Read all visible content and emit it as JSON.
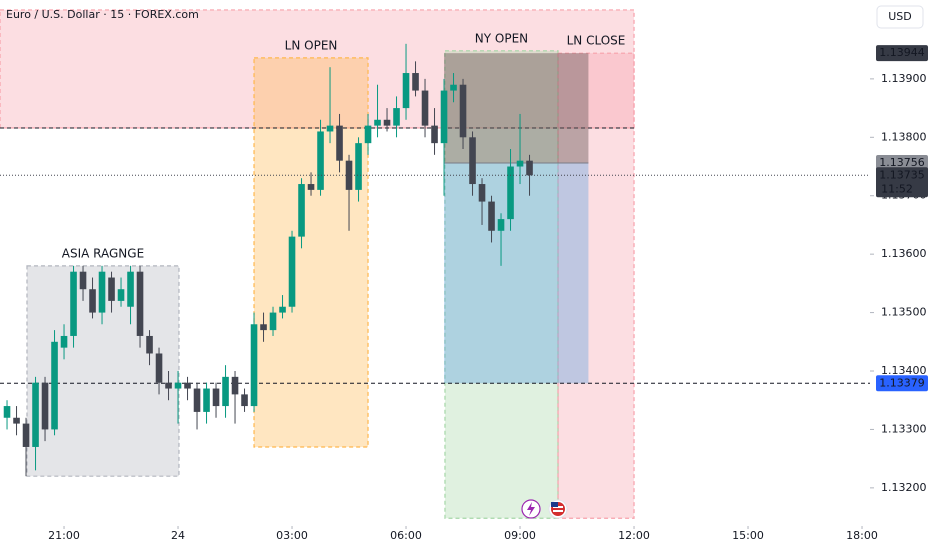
{
  "chart_data": {
    "type": "candlestick",
    "title": "Euro / U.S. Dollar · 15 · FOREX.com",
    "currency": "USD",
    "up_color": "#089981",
    "down_color": "#434651",
    "xlim": [
      -0.74,
      90.84
    ],
    "xticks": [
      {
        "value": 6,
        "label": "21:00"
      },
      {
        "value": 18,
        "label": "24"
      },
      {
        "value": 30,
        "label": "03:00"
      },
      {
        "value": 42,
        "label": "06:00"
      },
      {
        "value": 54,
        "label": "09:00"
      },
      {
        "value": 66,
        "label": "12:00"
      },
      {
        "value": 78,
        "label": "15:00"
      },
      {
        "value": 90,
        "label": "18:00"
      }
    ],
    "ylim": [
      1.13145,
      1.14035
    ],
    "yticks": [
      {
        "value": 1.132,
        "label": "1.13200"
      },
      {
        "value": 1.133,
        "label": "1.13300"
      },
      {
        "value": 1.134,
        "label": "1.13400"
      },
      {
        "value": 1.135,
        "label": "1.13500"
      },
      {
        "value": 1.136,
        "label": "1.13600"
      },
      {
        "value": 1.137,
        "label": "1.13700"
      },
      {
        "value": 1.138,
        "label": "1.13800"
      },
      {
        "value": 1.139,
        "label": "1.13900"
      }
    ],
    "open": [
      1.1332,
      1.1332,
      1.1331,
      1.1327,
      1.1338,
      1.133,
      1.1344,
      1.1346,
      1.1357,
      1.1354,
      1.135,
      1.1356,
      1.1352,
      1.1351,
      1.1357,
      1.1346,
      1.1343,
      1.1338,
      1.1337,
      1.1338,
      1.1337,
      1.1333,
      1.1337,
      1.1334,
      1.1339,
      1.1336,
      1.1334,
      1.1348,
      1.1347,
      1.135,
      1.1351,
      1.1363,
      1.1372,
      1.1371,
      1.1381,
      1.1382,
      1.1376,
      1.1371,
      1.1379,
      1.1382,
      1.1383,
      1.1382,
      1.1385,
      1.1391,
      1.1388,
      1.1382,
      1.1379,
      1.1388,
      1.1389,
      1.138,
      1.1372,
      1.1369,
      1.1364,
      1.1366,
      1.1375,
      1.1376
    ],
    "high": [
      1.1335,
      1.1334,
      1.1332,
      1.1339,
      1.1339,
      1.1347,
      1.1348,
      1.1358,
      1.1358,
      1.1356,
      1.1358,
      1.1357,
      1.1356,
      1.1358,
      1.1358,
      1.1347,
      1.1344,
      1.134,
      1.134,
      1.1339,
      1.1338,
      1.1338,
      1.1338,
      1.1341,
      1.134,
      1.1337,
      1.135,
      1.135,
      1.1351,
      1.1353,
      1.1364,
      1.1373,
      1.1374,
      1.1383,
      1.1392,
      1.1384,
      1.1377,
      1.138,
      1.1384,
      1.1389,
      1.1385,
      1.1387,
      1.1396,
      1.1393,
      1.139,
      1.1385,
      1.139,
      1.1391,
      1.139,
      1.1381,
      1.1373,
      1.137,
      1.1367,
      1.1378,
      1.1384,
      1.1377
    ],
    "low": [
      1.133,
      1.1329,
      1.1322,
      1.1323,
      1.1328,
      1.1329,
      1.1342,
      1.1344,
      1.1352,
      1.1349,
      1.1348,
      1.135,
      1.1351,
      1.1348,
      1.1344,
      1.1341,
      1.1336,
      1.1335,
      1.1331,
      1.1335,
      1.133,
      1.1331,
      1.1332,
      1.1332,
      1.1331,
      1.1333,
      1.1333,
      1.1345,
      1.1346,
      1.1349,
      1.135,
      1.1361,
      1.137,
      1.137,
      1.1379,
      1.1374,
      1.1364,
      1.1369,
      1.1377,
      1.138,
      1.1381,
      1.138,
      1.1383,
      1.1387,
      1.138,
      1.1377,
      1.137,
      1.1386,
      1.1378,
      1.137,
      1.1365,
      1.1362,
      1.1358,
      1.1364,
      1.1372,
      1.137
    ],
    "close": [
      1.1334,
      1.1331,
      1.1327,
      1.1338,
      1.133,
      1.1345,
      1.1346,
      1.1357,
      1.1354,
      1.135,
      1.1357,
      1.1352,
      1.1354,
      1.1357,
      1.1346,
      1.1343,
      1.1338,
      1.1337,
      1.1338,
      1.1337,
      1.1333,
      1.1337,
      1.1334,
      1.1339,
      1.1336,
      1.1334,
      1.1348,
      1.1347,
      1.135,
      1.1351,
      1.1363,
      1.1372,
      1.1371,
      1.1381,
      1.1382,
      1.1376,
      1.1371,
      1.1379,
      1.1382,
      1.1383,
      1.1382,
      1.1385,
      1.1391,
      1.1388,
      1.1382,
      1.1379,
      1.1388,
      1.1389,
      1.138,
      1.1372,
      1.1369,
      1.1364,
      1.1366,
      1.1375,
      1.1376,
      1.13735
    ],
    "countdown": "11:52",
    "zones": [
      {
        "x": [
          -0.74,
          66
        ],
        "y": [
          1.13816,
          1.14018
        ],
        "color": "#f7a1ab"
      },
      {
        "label": "ASIA  RAGNGE",
        "x": [
          2.1,
          18.1
        ],
        "y": [
          1.1322,
          1.1358
        ],
        "color": "#b2b5be"
      },
      {
        "label": "LN OPEN",
        "x": [
          26,
          38
        ],
        "y": [
          1.1327,
          1.13936
        ],
        "color": "#ffb74d"
      },
      {
        "label": "NY OPEN",
        "x": [
          46.1,
          58
        ],
        "y": [
          1.13148,
          1.13948
        ],
        "color": "#a5d6a7"
      },
      {
        "label": "LN CLOSE",
        "x": [
          58,
          66
        ],
        "y": [
          1.13148,
          1.13944
        ],
        "color": "#f7a1ab"
      }
    ],
    "position": {
      "x": [
        46,
        61.2
      ],
      "entry": 1.13756,
      "stop": 1.13944,
      "target": 1.13379
    }
  }
}
